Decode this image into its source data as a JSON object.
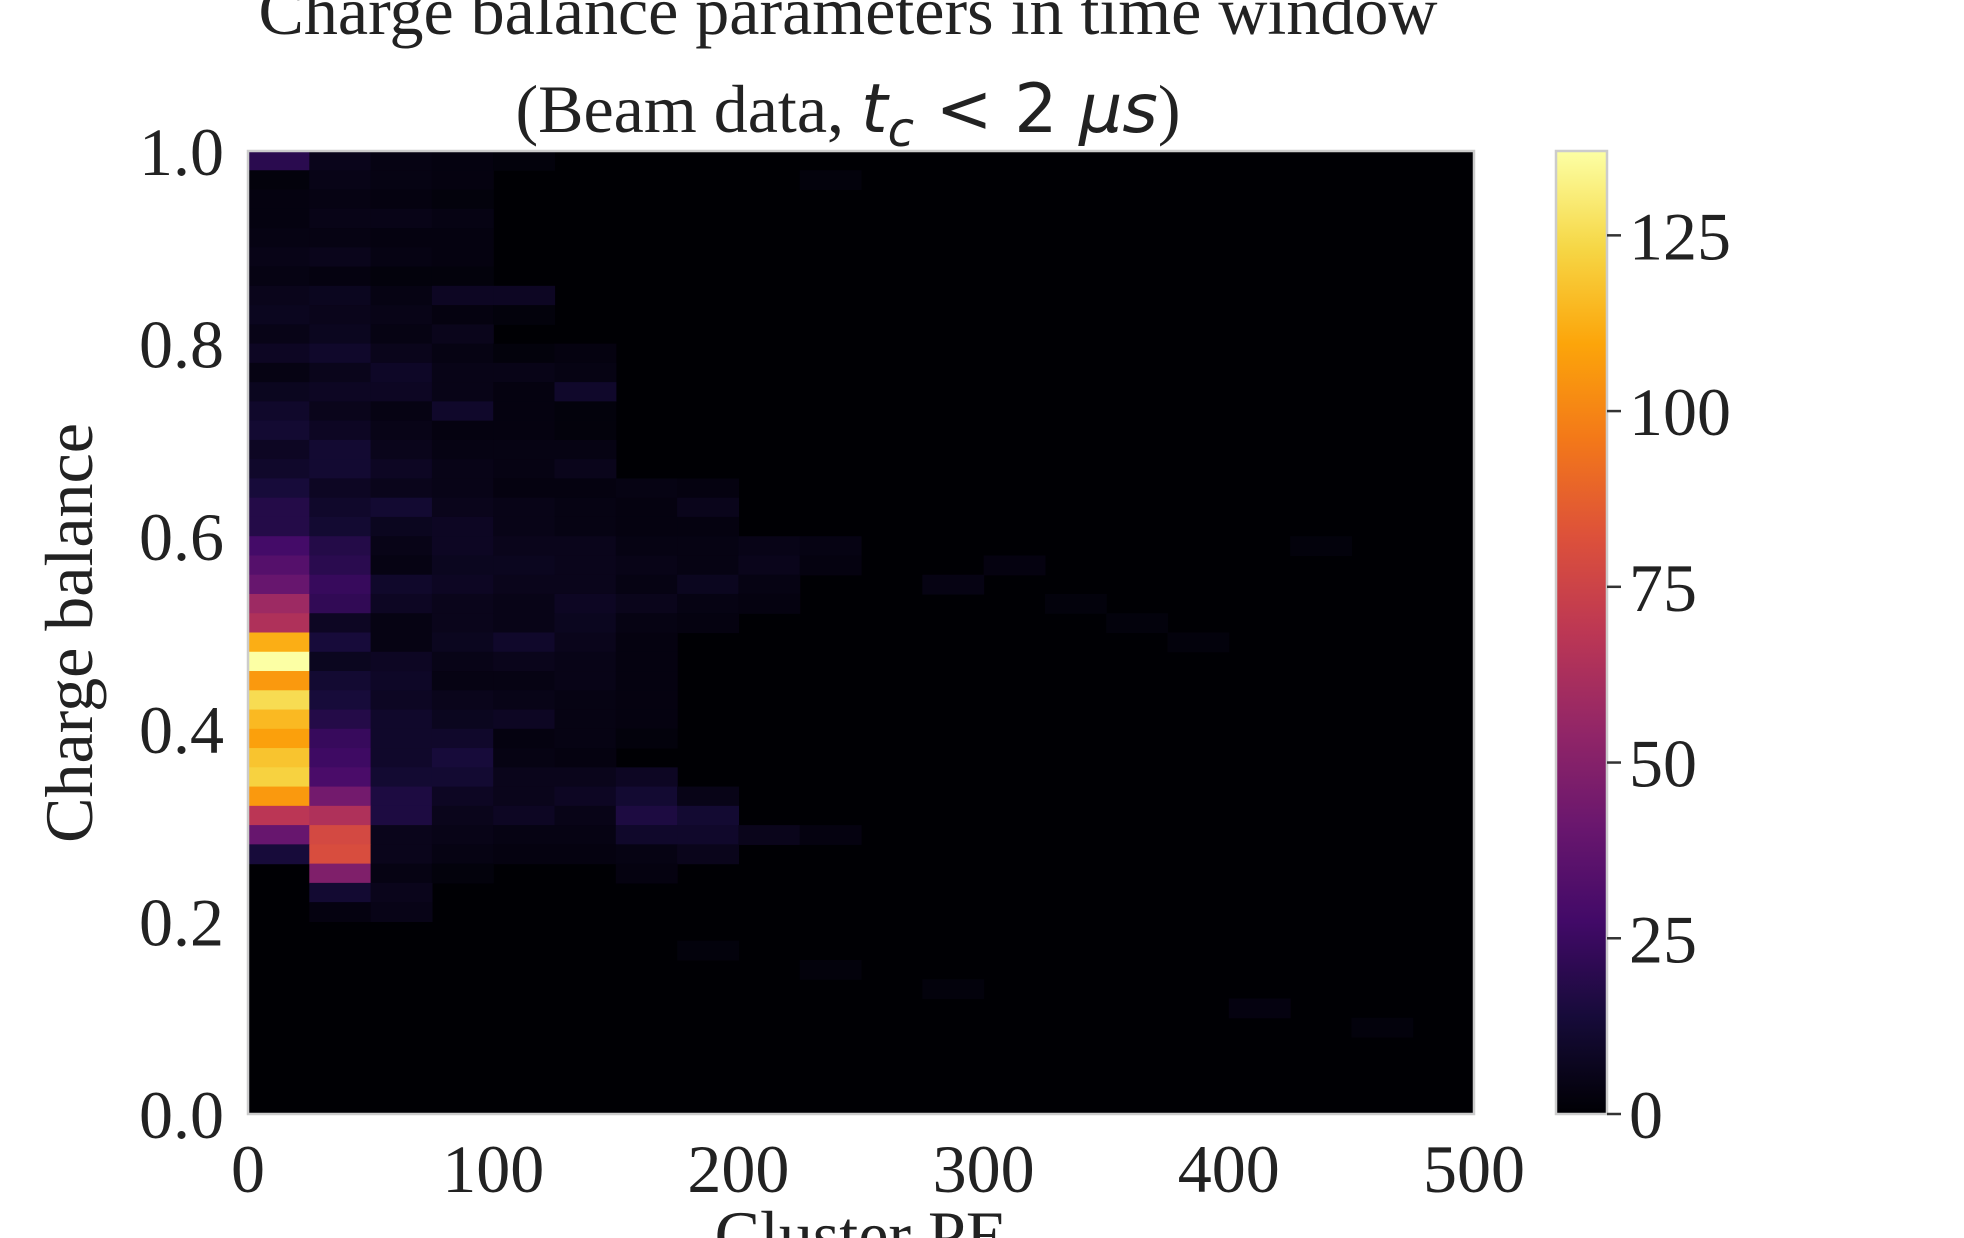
{
  "chart_data": {
    "type": "heatmap",
    "title": "Charge balance parameters in time window",
    "subtitle": {
      "prefix": "(Beam data, ",
      "var": "t",
      "sub": "c",
      "lt": " < 2 ",
      "unit": "μs",
      "suffix": ")"
    },
    "xlabel": "Cluster PE",
    "ylabel": "Charge balance",
    "xlim": [
      0,
      500
    ],
    "ylim": [
      0,
      1
    ],
    "xticks": [
      "0",
      "100",
      "200",
      "300",
      "400",
      "500"
    ],
    "yticks": [
      "0.0",
      "0.2",
      "0.4",
      "0.6",
      "0.8",
      "1.0"
    ],
    "colorbar": {
      "min": 0,
      "max": 137,
      "ticks": [
        "0",
        "25",
        "50",
        "75",
        "100",
        "125"
      ],
      "colormap": "inferno"
    },
    "bins": {
      "x_width": 25,
      "y_width": 0.02
    },
    "cells": [
      [
        0,
        0.98,
        20
      ],
      [
        25,
        0.98,
        6
      ],
      [
        50,
        0.98,
        4
      ],
      [
        75,
        0.98,
        3
      ],
      [
        100,
        0.98,
        2
      ],
      [
        0,
        0.96,
        2
      ],
      [
        25,
        0.96,
        5
      ],
      [
        50,
        0.96,
        4
      ],
      [
        75,
        0.96,
        3
      ],
      [
        225,
        0.96,
        2
      ],
      [
        0,
        0.94,
        3
      ],
      [
        25,
        0.94,
        4
      ],
      [
        50,
        0.94,
        3
      ],
      [
        75,
        0.94,
        2
      ],
      [
        0,
        0.92,
        3
      ],
      [
        25,
        0.92,
        5
      ],
      [
        50,
        0.92,
        5
      ],
      [
        75,
        0.92,
        4
      ],
      [
        0,
        0.9,
        4
      ],
      [
        25,
        0.9,
        4
      ],
      [
        50,
        0.9,
        3
      ],
      [
        75,
        0.9,
        3
      ],
      [
        0,
        0.88,
        5
      ],
      [
        25,
        0.88,
        6
      ],
      [
        50,
        0.88,
        4
      ],
      [
        75,
        0.88,
        3
      ],
      [
        0,
        0.86,
        4
      ],
      [
        25,
        0.86,
        3
      ],
      [
        50,
        0.86,
        2
      ],
      [
        75,
        0.86,
        2
      ],
      [
        0,
        0.84,
        6
      ],
      [
        25,
        0.84,
        7
      ],
      [
        50,
        0.84,
        4
      ],
      [
        75,
        0.84,
        8
      ],
      [
        100,
        0.84,
        8
      ],
      [
        0,
        0.82,
        7
      ],
      [
        25,
        0.82,
        6
      ],
      [
        50,
        0.82,
        5
      ],
      [
        75,
        0.82,
        3
      ],
      [
        100,
        0.82,
        2
      ],
      [
        0,
        0.8,
        5
      ],
      [
        25,
        0.8,
        7
      ],
      [
        50,
        0.8,
        4
      ],
      [
        75,
        0.8,
        6
      ],
      [
        0,
        0.78,
        8
      ],
      [
        25,
        0.78,
        10
      ],
      [
        50,
        0.78,
        6
      ],
      [
        75,
        0.78,
        4
      ],
      [
        100,
        0.78,
        2
      ],
      [
        125,
        0.78,
        3
      ],
      [
        0,
        0.76,
        4
      ],
      [
        25,
        0.76,
        6
      ],
      [
        50,
        0.76,
        9
      ],
      [
        75,
        0.76,
        5
      ],
      [
        100,
        0.76,
        5
      ],
      [
        125,
        0.76,
        4
      ],
      [
        0,
        0.74,
        7
      ],
      [
        25,
        0.74,
        8
      ],
      [
        50,
        0.74,
        8
      ],
      [
        75,
        0.74,
        5
      ],
      [
        100,
        0.74,
        3
      ],
      [
        125,
        0.74,
        10
      ],
      [
        0,
        0.72,
        10
      ],
      [
        25,
        0.72,
        6
      ],
      [
        50,
        0.72,
        4
      ],
      [
        75,
        0.72,
        10
      ],
      [
        100,
        0.72,
        3
      ],
      [
        125,
        0.72,
        2
      ],
      [
        0,
        0.7,
        12
      ],
      [
        25,
        0.7,
        8
      ],
      [
        50,
        0.7,
        5
      ],
      [
        75,
        0.7,
        3
      ],
      [
        100,
        0.7,
        3
      ],
      [
        125,
        0.7,
        2
      ],
      [
        0,
        0.68,
        8
      ],
      [
        25,
        0.68,
        12
      ],
      [
        50,
        0.68,
        6
      ],
      [
        75,
        0.68,
        4
      ],
      [
        100,
        0.68,
        4
      ],
      [
        125,
        0.68,
        4
      ],
      [
        0,
        0.66,
        10
      ],
      [
        25,
        0.66,
        12
      ],
      [
        50,
        0.66,
        8
      ],
      [
        75,
        0.66,
        5
      ],
      [
        100,
        0.66,
        4
      ],
      [
        125,
        0.66,
        6
      ],
      [
        0,
        0.64,
        14
      ],
      [
        25,
        0.64,
        8
      ],
      [
        50,
        0.64,
        6
      ],
      [
        75,
        0.64,
        5
      ],
      [
        100,
        0.64,
        3
      ],
      [
        125,
        0.64,
        3
      ],
      [
        150,
        0.64,
        4
      ],
      [
        175,
        0.64,
        3
      ],
      [
        0,
        0.62,
        18
      ],
      [
        25,
        0.62,
        10
      ],
      [
        50,
        0.62,
        12
      ],
      [
        75,
        0.62,
        6
      ],
      [
        100,
        0.62,
        5
      ],
      [
        125,
        0.62,
        4
      ],
      [
        150,
        0.62,
        3
      ],
      [
        175,
        0.62,
        6
      ],
      [
        0,
        0.6,
        18
      ],
      [
        25,
        0.6,
        12
      ],
      [
        50,
        0.6,
        7
      ],
      [
        75,
        0.6,
        8
      ],
      [
        100,
        0.6,
        5
      ],
      [
        125,
        0.6,
        4
      ],
      [
        150,
        0.6,
        3
      ],
      [
        175,
        0.6,
        3
      ],
      [
        0,
        0.58,
        28
      ],
      [
        25,
        0.58,
        18
      ],
      [
        50,
        0.58,
        5
      ],
      [
        75,
        0.58,
        8
      ],
      [
        100,
        0.58,
        6
      ],
      [
        125,
        0.58,
        6
      ],
      [
        150,
        0.58,
        4
      ],
      [
        175,
        0.58,
        4
      ],
      [
        200,
        0.58,
        5
      ],
      [
        225,
        0.58,
        4
      ],
      [
        0,
        0.56,
        34
      ],
      [
        25,
        0.56,
        20
      ],
      [
        50,
        0.56,
        4
      ],
      [
        75,
        0.56,
        7
      ],
      [
        100,
        0.56,
        7
      ],
      [
        125,
        0.56,
        6
      ],
      [
        150,
        0.56,
        5
      ],
      [
        175,
        0.56,
        4
      ],
      [
        200,
        0.56,
        6
      ],
      [
        225,
        0.56,
        3
      ],
      [
        0,
        0.54,
        40
      ],
      [
        25,
        0.54,
        24
      ],
      [
        50,
        0.54,
        10
      ],
      [
        75,
        0.54,
        8
      ],
      [
        100,
        0.54,
        6
      ],
      [
        125,
        0.54,
        6
      ],
      [
        150,
        0.54,
        4
      ],
      [
        175,
        0.54,
        7
      ],
      [
        200,
        0.54,
        4
      ],
      [
        0,
        0.52,
        58
      ],
      [
        25,
        0.52,
        22
      ],
      [
        50,
        0.52,
        8
      ],
      [
        75,
        0.52,
        6
      ],
      [
        100,
        0.52,
        5
      ],
      [
        125,
        0.52,
        8
      ],
      [
        150,
        0.52,
        6
      ],
      [
        175,
        0.52,
        4
      ],
      [
        200,
        0.52,
        3
      ],
      [
        0,
        0.5,
        64
      ],
      [
        25,
        0.5,
        8
      ],
      [
        50,
        0.5,
        4
      ],
      [
        75,
        0.5,
        6
      ],
      [
        100,
        0.5,
        5
      ],
      [
        125,
        0.5,
        7
      ],
      [
        150,
        0.5,
        4
      ],
      [
        175,
        0.5,
        3
      ],
      [
        0,
        0.48,
        112
      ],
      [
        25,
        0.48,
        14
      ],
      [
        50,
        0.48,
        4
      ],
      [
        75,
        0.48,
        7
      ],
      [
        100,
        0.48,
        10
      ],
      [
        125,
        0.48,
        6
      ],
      [
        150,
        0.48,
        3
      ],
      [
        0,
        0.46,
        137
      ],
      [
        25,
        0.46,
        7
      ],
      [
        50,
        0.46,
        8
      ],
      [
        75,
        0.46,
        5
      ],
      [
        100,
        0.46,
        6
      ],
      [
        125,
        0.46,
        5
      ],
      [
        150,
        0.46,
        3
      ],
      [
        0,
        0.44,
        106
      ],
      [
        25,
        0.44,
        12
      ],
      [
        50,
        0.44,
        9
      ],
      [
        75,
        0.44,
        4
      ],
      [
        100,
        0.44,
        4
      ],
      [
        125,
        0.44,
        5
      ],
      [
        150,
        0.44,
        3
      ],
      [
        0,
        0.42,
        125
      ],
      [
        25,
        0.42,
        14
      ],
      [
        50,
        0.42,
        8
      ],
      [
        75,
        0.42,
        6
      ],
      [
        100,
        0.42,
        5
      ],
      [
        125,
        0.42,
        4
      ],
      [
        150,
        0.42,
        3
      ],
      [
        0,
        0.4,
        115
      ],
      [
        25,
        0.4,
        18
      ],
      [
        50,
        0.4,
        10
      ],
      [
        75,
        0.4,
        7
      ],
      [
        100,
        0.4,
        8
      ],
      [
        125,
        0.4,
        4
      ],
      [
        150,
        0.4,
        3
      ],
      [
        0,
        0.38,
        108
      ],
      [
        25,
        0.38,
        24
      ],
      [
        50,
        0.38,
        10
      ],
      [
        75,
        0.38,
        10
      ],
      [
        100,
        0.38,
        3
      ],
      [
        125,
        0.38,
        4
      ],
      [
        150,
        0.38,
        2
      ],
      [
        0,
        0.36,
        118
      ],
      [
        25,
        0.36,
        26
      ],
      [
        50,
        0.36,
        10
      ],
      [
        75,
        0.36,
        14
      ],
      [
        100,
        0.36,
        4
      ],
      [
        125,
        0.36,
        3
      ],
      [
        0,
        0.34,
        122
      ],
      [
        25,
        0.34,
        30
      ],
      [
        50,
        0.34,
        12
      ],
      [
        75,
        0.34,
        12
      ],
      [
        100,
        0.34,
        6
      ],
      [
        125,
        0.34,
        6
      ],
      [
        150,
        0.34,
        8
      ],
      [
        0,
        0.32,
        106
      ],
      [
        25,
        0.32,
        44
      ],
      [
        50,
        0.32,
        16
      ],
      [
        75,
        0.32,
        8
      ],
      [
        100,
        0.32,
        6
      ],
      [
        125,
        0.32,
        8
      ],
      [
        150,
        0.32,
        12
      ],
      [
        175,
        0.32,
        5
      ],
      [
        0,
        0.3,
        68
      ],
      [
        25,
        0.3,
        64
      ],
      [
        50,
        0.3,
        16
      ],
      [
        75,
        0.3,
        6
      ],
      [
        100,
        0.3,
        8
      ],
      [
        125,
        0.3,
        5
      ],
      [
        150,
        0.3,
        16
      ],
      [
        175,
        0.3,
        12
      ],
      [
        0,
        0.28,
        40
      ],
      [
        25,
        0.28,
        78
      ],
      [
        50,
        0.28,
        6
      ],
      [
        75,
        0.28,
        5
      ],
      [
        100,
        0.28,
        4
      ],
      [
        125,
        0.28,
        4
      ],
      [
        150,
        0.28,
        10
      ],
      [
        175,
        0.28,
        10
      ],
      [
        200,
        0.28,
        6
      ],
      [
        225,
        0.28,
        3
      ],
      [
        0,
        0.26,
        14
      ],
      [
        25,
        0.26,
        80
      ],
      [
        50,
        0.26,
        6
      ],
      [
        75,
        0.26,
        4
      ],
      [
        100,
        0.26,
        3
      ],
      [
        125,
        0.26,
        3
      ],
      [
        150,
        0.26,
        4
      ],
      [
        175,
        0.26,
        6
      ],
      [
        25,
        0.24,
        48
      ],
      [
        50,
        0.24,
        4
      ],
      [
        75,
        0.24,
        2
      ],
      [
        150,
        0.24,
        3
      ],
      [
        25,
        0.22,
        12
      ],
      [
        50,
        0.22,
        6
      ],
      [
        25,
        0.2,
        3
      ],
      [
        50,
        0.2,
        5
      ],
      [
        175,
        0.16,
        2
      ],
      [
        225,
        0.14,
        2
      ],
      [
        275,
        0.12,
        2
      ],
      [
        400,
        0.1,
        3
      ],
      [
        450,
        0.08,
        2
      ],
      [
        300,
        0.56,
        3
      ],
      [
        275,
        0.54,
        4
      ],
      [
        350,
        0.5,
        2
      ],
      [
        375,
        0.48,
        2
      ],
      [
        325,
        0.52,
        2
      ],
      [
        425,
        0.58,
        2
      ]
    ]
  }
}
